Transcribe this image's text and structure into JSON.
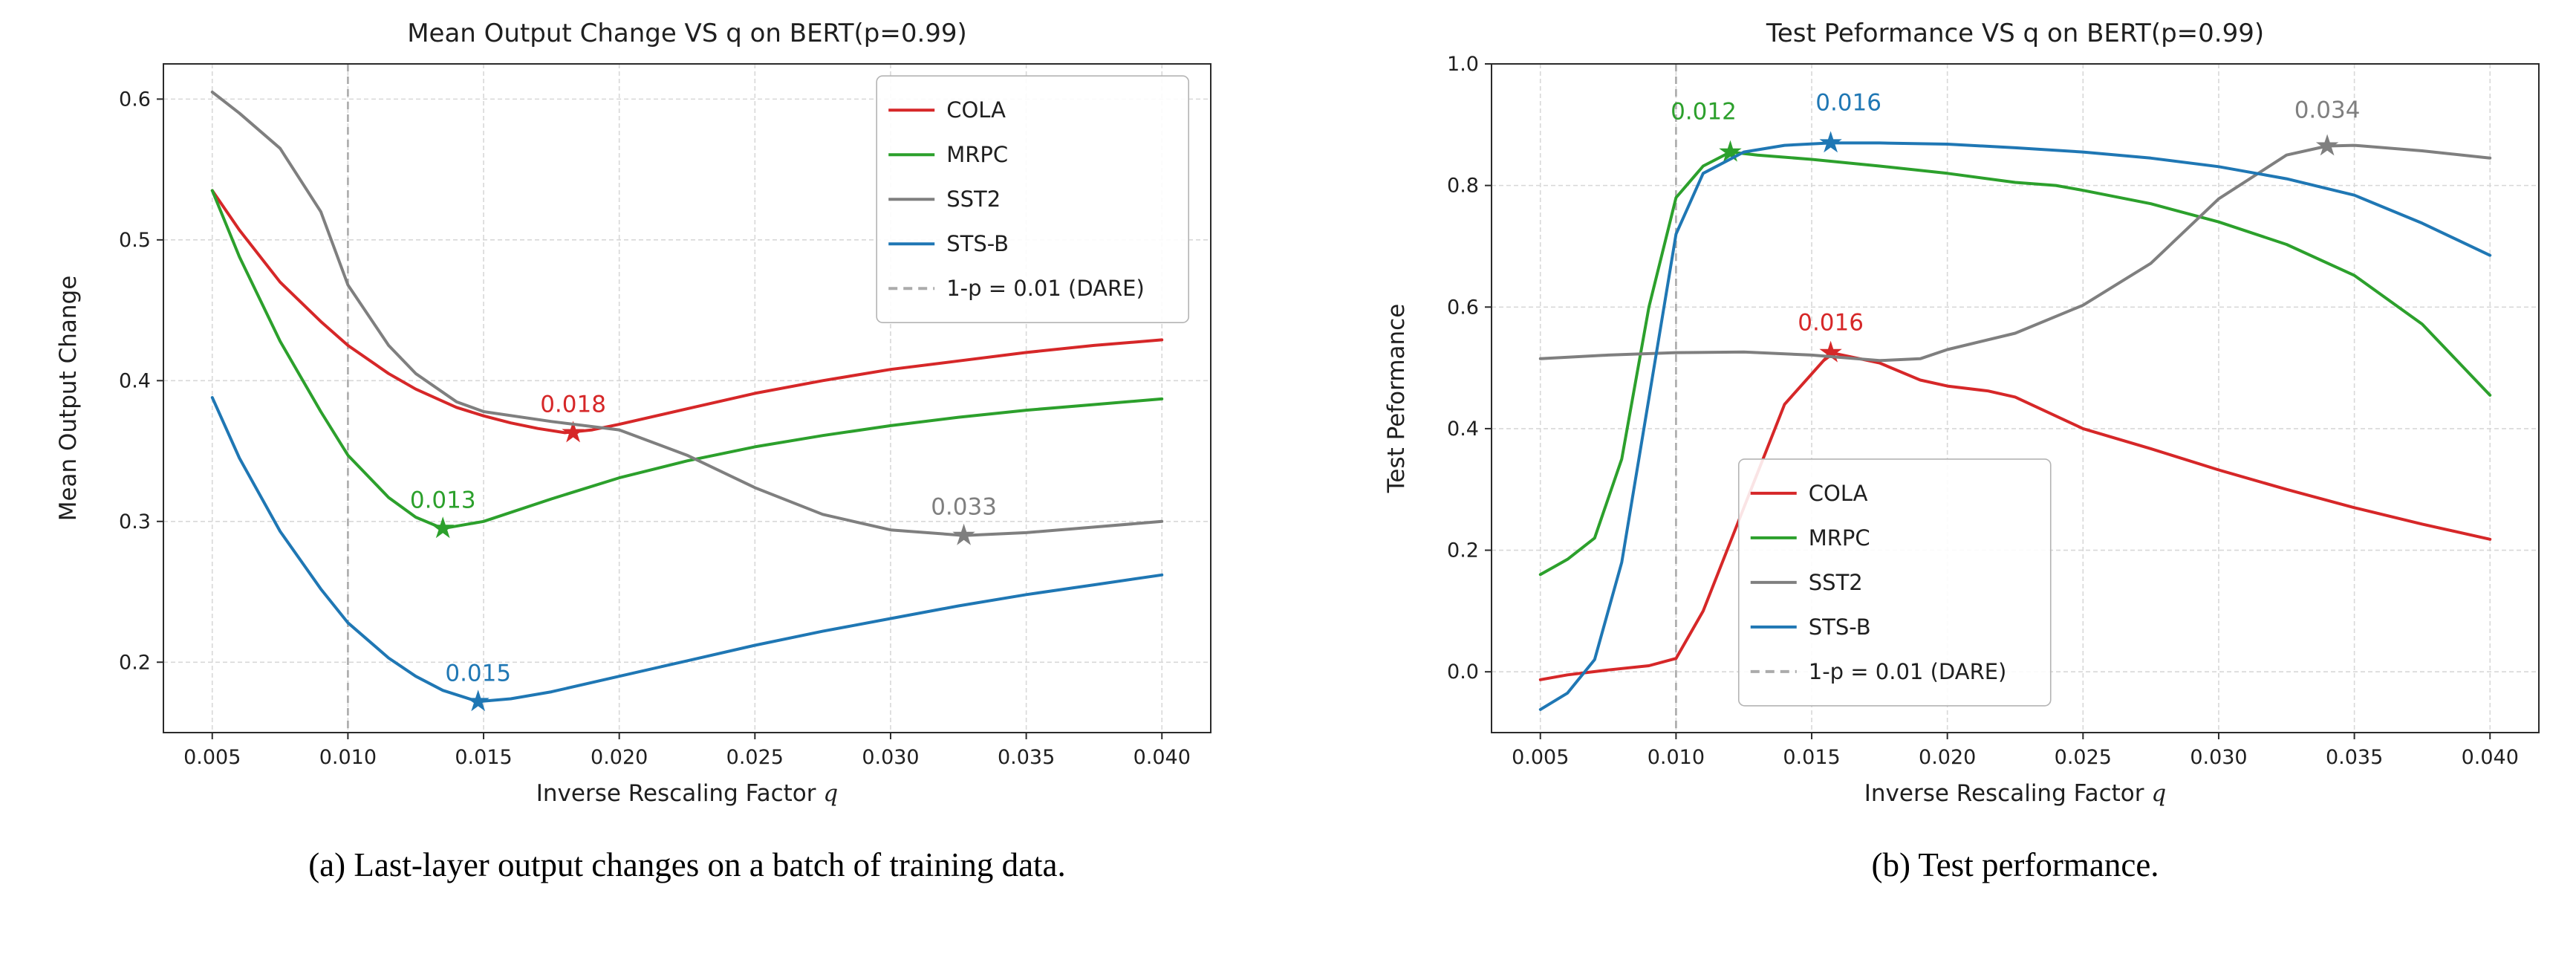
{
  "figure": {
    "background": "#ffffff"
  },
  "theme": {
    "grid": "#d8d8d8",
    "dare": "#ababab",
    "spine": "#2b2b2b",
    "text": "#1f1f1f",
    "legend_border": "#b4b4b4"
  },
  "chart_data": [
    {
      "type": "line",
      "title": "Mean Output Change VS q on BERT(p=0.99)",
      "xlabel_main": "Inverse Rescaling Factor ",
      "xlabel_italic": "q",
      "ylabel": "Mean Output Change",
      "xlim": [
        0.0032,
        0.0418
      ],
      "ylim": [
        0.15,
        0.625
      ],
      "xticks": [
        "0.005",
        "0.010",
        "0.015",
        "0.020",
        "0.025",
        "0.030",
        "0.035",
        "0.040"
      ],
      "yticks": [
        "0.2",
        "0.3",
        "0.4",
        "0.5",
        "0.6"
      ],
      "grid": "dashed",
      "legend_frac": [
        0.681,
        0.018
      ],
      "dare_line": {
        "x": 0.01,
        "legend_label": "1-p = 0.01 (DARE)"
      },
      "series": [
        {
          "name": "COLA",
          "color": "#d62728",
          "x": [
            0.005,
            0.006,
            0.0075,
            0.009,
            0.01,
            0.0115,
            0.0125,
            0.014,
            0.015,
            0.016,
            0.017,
            0.018,
            0.019,
            0.02,
            0.0225,
            0.025,
            0.0275,
            0.03,
            0.0325,
            0.035,
            0.0375,
            0.04
          ],
          "y": [
            0.535,
            0.507,
            0.47,
            0.442,
            0.425,
            0.405,
            0.394,
            0.381,
            0.375,
            0.37,
            0.366,
            0.363,
            0.365,
            0.369,
            0.38,
            0.391,
            0.4,
            0.408,
            0.414,
            0.42,
            0.425,
            0.429
          ],
          "star": {
            "x": 0.0183,
            "y": 0.363,
            "label": "0.018",
            "ldx": 0,
            "ldy": -28
          }
        },
        {
          "name": "MRPC",
          "color": "#2ca02c",
          "x": [
            0.005,
            0.006,
            0.0075,
            0.009,
            0.01,
            0.0115,
            0.0125,
            0.0135,
            0.015,
            0.0175,
            0.02,
            0.0225,
            0.025,
            0.0275,
            0.03,
            0.0325,
            0.035,
            0.0375,
            0.04
          ],
          "y": [
            0.535,
            0.488,
            0.428,
            0.378,
            0.347,
            0.317,
            0.303,
            0.295,
            0.3,
            0.316,
            0.331,
            0.343,
            0.353,
            0.361,
            0.368,
            0.374,
            0.379,
            0.383,
            0.387
          ],
          "star": {
            "x": 0.0135,
            "y": 0.295,
            "label": "0.013",
            "ldx": 0,
            "ldy": -28
          }
        },
        {
          "name": "SST2",
          "color": "#7f7f7f",
          "x": [
            0.005,
            0.006,
            0.0075,
            0.009,
            0.01,
            0.0115,
            0.0125,
            0.014,
            0.015,
            0.0175,
            0.02,
            0.0225,
            0.025,
            0.0275,
            0.03,
            0.0327,
            0.035,
            0.0375,
            0.04
          ],
          "y": [
            0.605,
            0.59,
            0.565,
            0.52,
            0.468,
            0.425,
            0.405,
            0.385,
            0.378,
            0.371,
            0.365,
            0.347,
            0.324,
            0.305,
            0.294,
            0.29,
            0.292,
            0.296,
            0.3
          ],
          "star": {
            "x": 0.0327,
            "y": 0.29,
            "label": "0.033",
            "ldx": 0,
            "ldy": -28
          }
        },
        {
          "name": "STS-B",
          "color": "#1f77b4",
          "x": [
            0.005,
            0.006,
            0.0075,
            0.009,
            0.01,
            0.0115,
            0.0125,
            0.0135,
            0.0148,
            0.016,
            0.0175,
            0.02,
            0.0225,
            0.025,
            0.0275,
            0.03,
            0.0325,
            0.035,
            0.0375,
            0.04
          ],
          "y": [
            0.388,
            0.345,
            0.293,
            0.252,
            0.228,
            0.203,
            0.19,
            0.18,
            0.172,
            0.174,
            0.179,
            0.19,
            0.201,
            0.212,
            0.222,
            0.231,
            0.24,
            0.248,
            0.255,
            0.262
          ],
          "star": {
            "x": 0.0148,
            "y": 0.172,
            "label": "0.015",
            "ldx": 0,
            "ldy": -28
          }
        }
      ],
      "caption": "(a) Last-layer output changes on a batch of training data."
    },
    {
      "type": "line",
      "title": "Test Peformance VS q on BERT(p=0.99)",
      "xlabel_main": "Inverse Rescaling Factor ",
      "xlabel_italic": "q",
      "ylabel": "Test Peformance",
      "xlim": [
        0.0032,
        0.0418
      ],
      "ylim": [
        -0.1,
        1.0
      ],
      "xticks": [
        "0.005",
        "0.010",
        "0.015",
        "0.020",
        "0.025",
        "0.030",
        "0.035",
        "0.040"
      ],
      "yticks": [
        "0.0",
        "0.2",
        "0.4",
        "0.6",
        "0.8",
        "1.0"
      ],
      "grid": "dashed",
      "legend_frac": [
        0.236,
        0.591
      ],
      "dare_line": {
        "x": 0.01,
        "legend_label": "1-p = 0.01 (DARE)"
      },
      "series": [
        {
          "name": "COLA",
          "color": "#d62728",
          "x": [
            0.005,
            0.006,
            0.0075,
            0.009,
            0.01,
            0.011,
            0.0125,
            0.014,
            0.0157,
            0.0175,
            0.019,
            0.02,
            0.0215,
            0.0225,
            0.025,
            0.0275,
            0.03,
            0.0325,
            0.035,
            0.0375,
            0.04
          ],
          "y": [
            -0.013,
            -0.005,
            0.003,
            0.01,
            0.022,
            0.1,
            0.27,
            0.44,
            0.525,
            0.508,
            0.48,
            0.47,
            0.462,
            0.452,
            0.4,
            0.367,
            0.332,
            0.3,
            0.27,
            0.243,
            0.218
          ],
          "star": {
            "x": 0.0157,
            "y": 0.525,
            "label": "0.016",
            "ldx": 0,
            "ldy": -30
          }
        },
        {
          "name": "MRPC",
          "color": "#2ca02c",
          "x": [
            0.005,
            0.006,
            0.007,
            0.008,
            0.009,
            0.01,
            0.011,
            0.012,
            0.013,
            0.015,
            0.0175,
            0.02,
            0.0225,
            0.024,
            0.025,
            0.0275,
            0.03,
            0.0325,
            0.035,
            0.0375,
            0.04
          ],
          "y": [
            0.16,
            0.185,
            0.22,
            0.35,
            0.6,
            0.78,
            0.832,
            0.855,
            0.85,
            0.843,
            0.832,
            0.82,
            0.805,
            0.8,
            0.792,
            0.77,
            0.74,
            0.703,
            0.652,
            0.572,
            0.455
          ],
          "star": {
            "x": 0.012,
            "y": 0.855,
            "label": "0.012",
            "ldx": -36,
            "ldy": -44
          }
        },
        {
          "name": "SST2",
          "color": "#7f7f7f",
          "x": [
            0.005,
            0.0075,
            0.01,
            0.0125,
            0.015,
            0.0175,
            0.019,
            0.02,
            0.0225,
            0.025,
            0.0275,
            0.03,
            0.0325,
            0.034,
            0.035,
            0.0375,
            0.04
          ],
          "y": [
            0.515,
            0.521,
            0.525,
            0.526,
            0.521,
            0.512,
            0.515,
            0.53,
            0.557,
            0.603,
            0.672,
            0.778,
            0.85,
            0.865,
            0.866,
            0.857,
            0.845
          ],
          "star": {
            "x": 0.034,
            "y": 0.865,
            "label": "0.034",
            "ldx": 0,
            "ldy": -38
          }
        },
        {
          "name": "STS-B",
          "color": "#1f77b4",
          "x": [
            0.005,
            0.006,
            0.007,
            0.008,
            0.009,
            0.01,
            0.011,
            0.0125,
            0.014,
            0.0157,
            0.0175,
            0.02,
            0.0225,
            0.025,
            0.0275,
            0.03,
            0.0325,
            0.035,
            0.0375,
            0.04
          ],
          "y": [
            -0.062,
            -0.035,
            0.02,
            0.18,
            0.45,
            0.72,
            0.82,
            0.855,
            0.866,
            0.87,
            0.87,
            0.868,
            0.862,
            0.855,
            0.845,
            0.831,
            0.811,
            0.784,
            0.738,
            0.685
          ],
          "star": {
            "x": 0.0157,
            "y": 0.87,
            "label": "0.016",
            "ldx": 24,
            "ldy": -44
          }
        }
      ],
      "caption": "(b) Test performance."
    }
  ]
}
